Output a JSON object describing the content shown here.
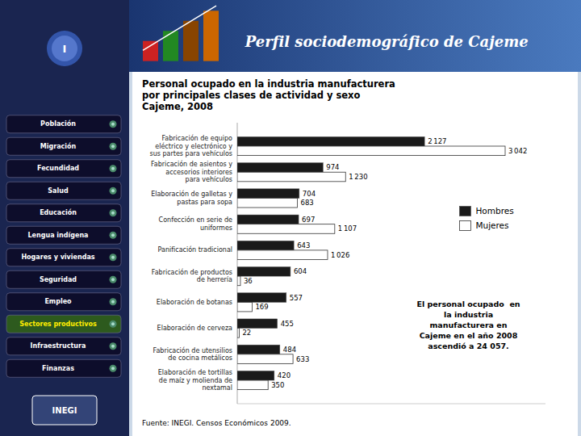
{
  "header_title": "Perfil sociodemográfico de Cajeme",
  "logo": "I",
  "brand": "INEGI",
  "menu_items": [
    "Población",
    "Migración",
    "Fecundidad",
    "Salud",
    "Educación",
    "Lengua indígena",
    "Hogares y viviendas",
    "Seguridad",
    "Empleo",
    "Sectores productivos",
    "Infraestructura",
    "Finanzas"
  ],
  "active_menu": "Sectores productivos",
  "footer": "Fuente: INEGI. Censos Económicos 2009.",
  "chart_data": {
    "type": "bar",
    "orientation": "horizontal",
    "title": "Personal ocupado en la industria manufacturera\npor principales clases de actividad y sexo\nCajeme, 2008",
    "categories": [
      "Fabricación de equipo\neléctrico y electrónico y\nsus partes para vehículos",
      "Fabricación de asientos y\naccesorios interiores\npara vehículos",
      "Elaboración de galletas y\npastas para sopa",
      "Confección en serie de\nuniformes",
      "Panificación tradicional",
      "Fabricación de productos\nde herrería",
      "Elaboración de botanas",
      "Elaboración de cerveza",
      "Fabricación de utensilios\nde cocina metálicos",
      "Elaboración de tortillas\nde maíz y molienda de\nnextamal"
    ],
    "series": [
      {
        "name": "Hombres",
        "color": "#1a1a1a",
        "values": [
          2127,
          974,
          704,
          697,
          643,
          604,
          557,
          455,
          484,
          420
        ],
        "value_labels": [
          "2 127",
          "974",
          "704",
          "697",
          "643",
          "604",
          "557",
          "455",
          "484",
          "420"
        ]
      },
      {
        "name": "Mujeres",
        "color": "#ffffff",
        "values": [
          3042,
          1230,
          683,
          1107,
          1026,
          36,
          169,
          22,
          633,
          350
        ],
        "value_labels": [
          "3 042",
          "1 230",
          "683",
          "1 107",
          "1 026",
          "36",
          "169",
          "22",
          "633",
          "350"
        ]
      }
    ],
    "xlim": [
      0,
      3500
    ],
    "tick_labels": "y",
    "data_labels": true,
    "legend": "upper right",
    "annotation": "El personal ocupado  en\nla industria\nmanufacturera en\nCajeme en el año 2008\nascendió a 24 057."
  }
}
